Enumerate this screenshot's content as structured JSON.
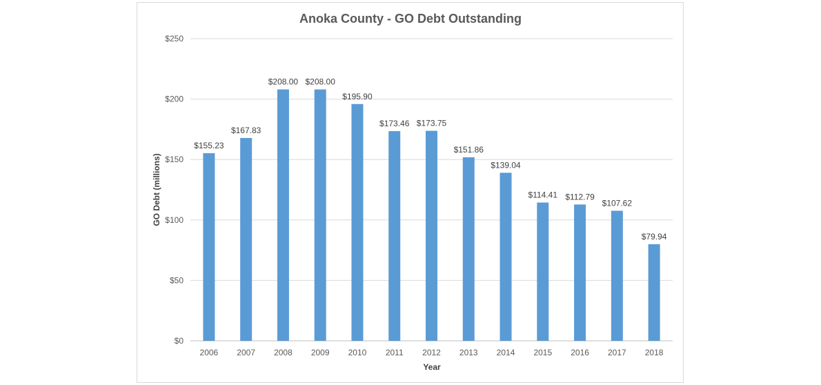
{
  "chart_data": {
    "type": "bar",
    "title": "Anoka County - GO Debt Outstanding",
    "xlabel": "Year",
    "ylabel": "GO Debt (millions)",
    "categories": [
      "2006",
      "2007",
      "2008",
      "2009",
      "2010",
      "2011",
      "2012",
      "2013",
      "2014",
      "2015",
      "2016",
      "2017",
      "2018"
    ],
    "values": [
      155.23,
      167.83,
      208.0,
      208.0,
      195.9,
      173.46,
      173.75,
      151.86,
      139.04,
      114.41,
      112.79,
      107.62,
      79.94
    ],
    "data_labels": [
      "$155.23",
      "$167.83",
      "$208.00",
      "$208.00",
      "$195.90",
      "$173.46",
      "$173.75",
      "$151.86",
      "$139.04",
      "$114.41",
      "$112.79",
      "$107.62",
      "$79.94"
    ],
    "yticks": [
      0,
      50,
      100,
      150,
      200,
      250
    ],
    "ytick_labels": [
      "$0",
      "$50",
      "$100",
      "$150",
      "$200",
      "$250"
    ],
    "ylim": [
      0,
      250
    ],
    "grid": true,
    "legend": "none",
    "bar_color": "#5B9BD5"
  }
}
